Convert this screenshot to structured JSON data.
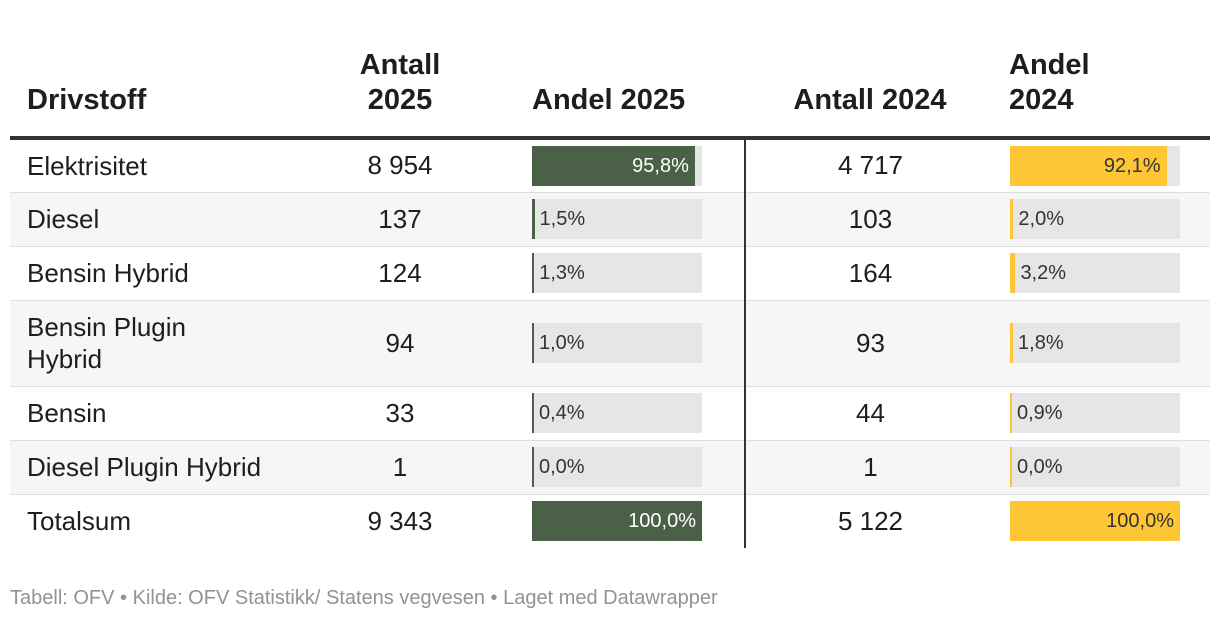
{
  "colors": {
    "andel_2025": "#4a6147",
    "andel_2024": "#fec534",
    "bar_track": "#e6e6e6"
  },
  "headers": {
    "drivstoff": "Drivstoff",
    "antall_2025": [
      "Antall",
      "2025"
    ],
    "andel_2025": "Andel 2025",
    "antall_2024": "Antall 2024",
    "andel_2024": [
      "Andel",
      "2024"
    ]
  },
  "chart_data": {
    "type": "table",
    "columns": [
      "Drivstoff",
      "Antall 2025",
      "Andel 2025",
      "Antall 2024",
      "Andel 2024"
    ],
    "rows": [
      {
        "drivstoff": [
          "Elektrisitet"
        ],
        "antall_2025": "8 954",
        "andel_2025": 95.8,
        "andel_2025_label": "95,8%",
        "antall_2024": "4 717",
        "andel_2024": 92.1,
        "andel_2024_label": "92,1%"
      },
      {
        "drivstoff": [
          "Diesel"
        ],
        "antall_2025": "137",
        "andel_2025": 1.5,
        "andel_2025_label": "1,5%",
        "antall_2024": "103",
        "andel_2024": 2.0,
        "andel_2024_label": "2,0%"
      },
      {
        "drivstoff": [
          "Bensin Hybrid"
        ],
        "antall_2025": "124",
        "andel_2025": 1.3,
        "andel_2025_label": "1,3%",
        "antall_2024": "164",
        "andel_2024": 3.2,
        "andel_2024_label": "3,2%"
      },
      {
        "drivstoff": [
          "Bensin Plugin",
          "Hybrid"
        ],
        "antall_2025": "94",
        "andel_2025": 1.0,
        "andel_2025_label": "1,0%",
        "antall_2024": "93",
        "andel_2024": 1.8,
        "andel_2024_label": "1,8%"
      },
      {
        "drivstoff": [
          "Bensin"
        ],
        "antall_2025": "33",
        "andel_2025": 0.4,
        "andel_2025_label": "0,4%",
        "antall_2024": "44",
        "andel_2024": 0.9,
        "andel_2024_label": "0,9%"
      },
      {
        "drivstoff": [
          "Diesel Plugin Hybrid"
        ],
        "antall_2025": "1",
        "andel_2025": 0.0,
        "andel_2025_label": "0,0%",
        "antall_2024": "1",
        "andel_2024": 0.0,
        "andel_2024_label": "0,0%"
      },
      {
        "drivstoff": [
          "Totalsum"
        ],
        "antall_2025": "9 343",
        "andel_2025": 100.0,
        "andel_2025_label": "100,0%",
        "antall_2024": "5 122",
        "andel_2024": 100.0,
        "andel_2024_label": "100,0%"
      }
    ]
  },
  "footer": "Tabell: OFV • Kilde: OFV Statistikk/ Statens vegvesen • Laget med Datawrapper"
}
